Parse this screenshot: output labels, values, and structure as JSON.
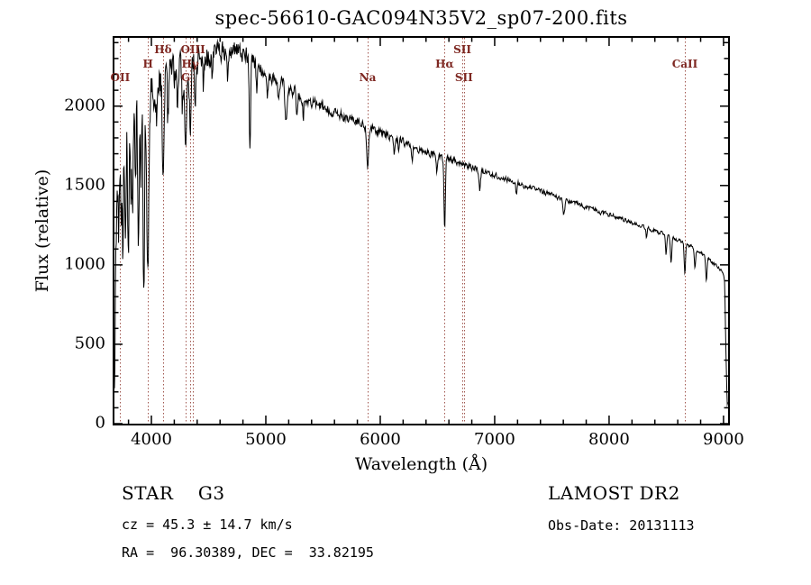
{
  "colors": {
    "background": "#ffffff",
    "spectrum": "#000000",
    "axis": "#000000",
    "line_marker": "#a1574f",
    "line_label": "#7e2822"
  },
  "footer": {
    "class_label": "STAR    G3",
    "survey": "LAMOST DR2",
    "cz_line": "cz = 45.3 ± 14.7 km/s",
    "obs_date": "Obs-Date: 20131113",
    "radec_line": "RA =  96.30389, DEC =  33.82195"
  },
  "chart_data": {
    "type": "line",
    "title": "spec-56610-GAC094N35V2_sp07-200.fits",
    "xlabel": "Wavelength (Å)",
    "ylabel": "Flux (relative)",
    "xlim": [
      3677,
      9040
    ],
    "ylim": [
      0,
      2430
    ],
    "x_ticks": [
      4000,
      5000,
      6000,
      7000,
      8000,
      9000
    ],
    "y_ticks": [
      0,
      500,
      1000,
      1500,
      2000
    ],
    "x_minor_step": 200,
    "y_minor_step": 100,
    "grid": false,
    "series_name": "flux (relative)",
    "continuum_points": [
      [
        3677,
        80
      ],
      [
        3690,
        1000
      ],
      [
        3705,
        1600
      ],
      [
        3730,
        1700
      ],
      [
        3780,
        1800
      ],
      [
        3850,
        1920
      ],
      [
        3920,
        2020
      ],
      [
        4000,
        2100
      ],
      [
        4100,
        2160
      ],
      [
        4200,
        2220
      ],
      [
        4300,
        2255
      ],
      [
        4400,
        2290
      ],
      [
        4500,
        2320
      ],
      [
        4600,
        2345
      ],
      [
        4700,
        2355
      ],
      [
        4780,
        2345
      ],
      [
        4850,
        2320
      ],
      [
        4900,
        2260
      ],
      [
        5000,
        2210
      ],
      [
        5100,
        2160
      ],
      [
        5200,
        2115
      ],
      [
        5300,
        2070
      ],
      [
        5400,
        2030
      ],
      [
        5500,
        1995
      ],
      [
        5600,
        1960
      ],
      [
        5700,
        1930
      ],
      [
        5800,
        1900
      ],
      [
        5900,
        1865
      ],
      [
        6000,
        1835
      ],
      [
        6100,
        1805
      ],
      [
        6200,
        1775
      ],
      [
        6300,
        1745
      ],
      [
        6400,
        1715
      ],
      [
        6500,
        1690
      ],
      [
        6600,
        1665
      ],
      [
        6700,
        1640
      ],
      [
        6800,
        1615
      ],
      [
        6900,
        1590
      ],
      [
        7000,
        1565
      ],
      [
        7100,
        1540
      ],
      [
        7200,
        1515
      ],
      [
        7300,
        1490
      ],
      [
        7400,
        1465
      ],
      [
        7500,
        1440
      ],
      [
        7600,
        1415
      ],
      [
        7700,
        1390
      ],
      [
        7800,
        1365
      ],
      [
        7900,
        1340
      ],
      [
        8000,
        1315
      ],
      [
        8100,
        1290
      ],
      [
        8200,
        1265
      ],
      [
        8300,
        1240
      ],
      [
        8400,
        1215
      ],
      [
        8500,
        1190
      ],
      [
        8600,
        1160
      ],
      [
        8700,
        1125
      ],
      [
        8800,
        1080
      ],
      [
        8900,
        1020
      ],
      [
        8960,
        975
      ],
      [
        9000,
        950
      ],
      [
        9010,
        880
      ],
      [
        9022,
        420
      ],
      [
        9032,
        130
      ]
    ],
    "absorption_features": [
      [
        3712,
        450,
        6
      ],
      [
        3734,
        500,
        5
      ],
      [
        3750,
        650,
        5
      ],
      [
        3770,
        750,
        5
      ],
      [
        3798,
        600,
        5
      ],
      [
        3820,
        400,
        5
      ],
      [
        3835,
        700,
        6
      ],
      [
        3860,
        350,
        5
      ],
      [
        3889,
        750,
        7
      ],
      [
        3910,
        300,
        5
      ],
      [
        3934,
        1250,
        7
      ],
      [
        3969,
        1150,
        8
      ],
      [
        4045,
        250,
        5
      ],
      [
        4102,
        500,
        7
      ],
      [
        4144,
        300,
        5
      ],
      [
        4227,
        320,
        5
      ],
      [
        4271,
        250,
        5
      ],
      [
        4300,
        440,
        9
      ],
      [
        4340,
        440,
        7
      ],
      [
        4383,
        330,
        5
      ],
      [
        4455,
        200,
        5
      ],
      [
        4531,
        180,
        5
      ],
      [
        4668,
        180,
        5
      ],
      [
        4861,
        560,
        6
      ],
      [
        4920,
        150,
        5
      ],
      [
        5015,
        130,
        5
      ],
      [
        5110,
        120,
        5
      ],
      [
        5175,
        240,
        9
      ],
      [
        5270,
        160,
        6
      ],
      [
        5328,
        120,
        5
      ],
      [
        5890,
        260,
        8
      ],
      [
        6122,
        90,
        5
      ],
      [
        6162,
        90,
        5
      ],
      [
        6280,
        90,
        6
      ],
      [
        6495,
        100,
        5
      ],
      [
        6563,
        450,
        6
      ],
      [
        6870,
        120,
        7
      ],
      [
        7190,
        70,
        6
      ],
      [
        7605,
        90,
        8
      ],
      [
        8327,
        60,
        5
      ],
      [
        8498,
        120,
        5
      ],
      [
        8542,
        170,
        6
      ],
      [
        8662,
        180,
        6
      ],
      [
        8750,
        120,
        6
      ],
      [
        8850,
        140,
        6
      ]
    ],
    "noise_profile": [
      [
        3677,
        230
      ],
      [
        3750,
        240
      ],
      [
        3850,
        210
      ],
      [
        3950,
        160
      ],
      [
        4050,
        120
      ],
      [
        4200,
        95
      ],
      [
        4400,
        75
      ],
      [
        4600,
        55
      ],
      [
        4800,
        48
      ],
      [
        5000,
        38
      ],
      [
        5300,
        30
      ],
      [
        5600,
        26
      ],
      [
        6000,
        22
      ],
      [
        6500,
        18
      ],
      [
        7000,
        15
      ],
      [
        7500,
        13
      ],
      [
        8000,
        12
      ],
      [
        8500,
        11
      ],
      [
        9040,
        10
      ]
    ],
    "noise_seed": 20131113,
    "sample_step": 4,
    "spectral_lines": [
      {
        "wavelength": 3727,
        "label": "OII",
        "row": 2
      },
      {
        "wavelength": 3970,
        "label": "H",
        "row": 1
      },
      {
        "wavelength": 4102,
        "label": "Hδ",
        "row": 0
      },
      {
        "wavelength": 4300,
        "label": "G",
        "row": 2
      },
      {
        "wavelength": 4340,
        "label": "Hγ",
        "row": 1
      },
      {
        "wavelength": 4363,
        "label": "OIII",
        "row": 0
      },
      {
        "wavelength": 5890,
        "label": "Na",
        "row": 2
      },
      {
        "wavelength": 6563,
        "label": "Hα",
        "row": 1
      },
      {
        "wavelength": 6717,
        "label": "SII",
        "row": 0
      },
      {
        "wavelength": 6731,
        "label": "SII",
        "row": 2
      },
      {
        "wavelength": 8662,
        "label": "CaII",
        "row": 1
      }
    ]
  }
}
